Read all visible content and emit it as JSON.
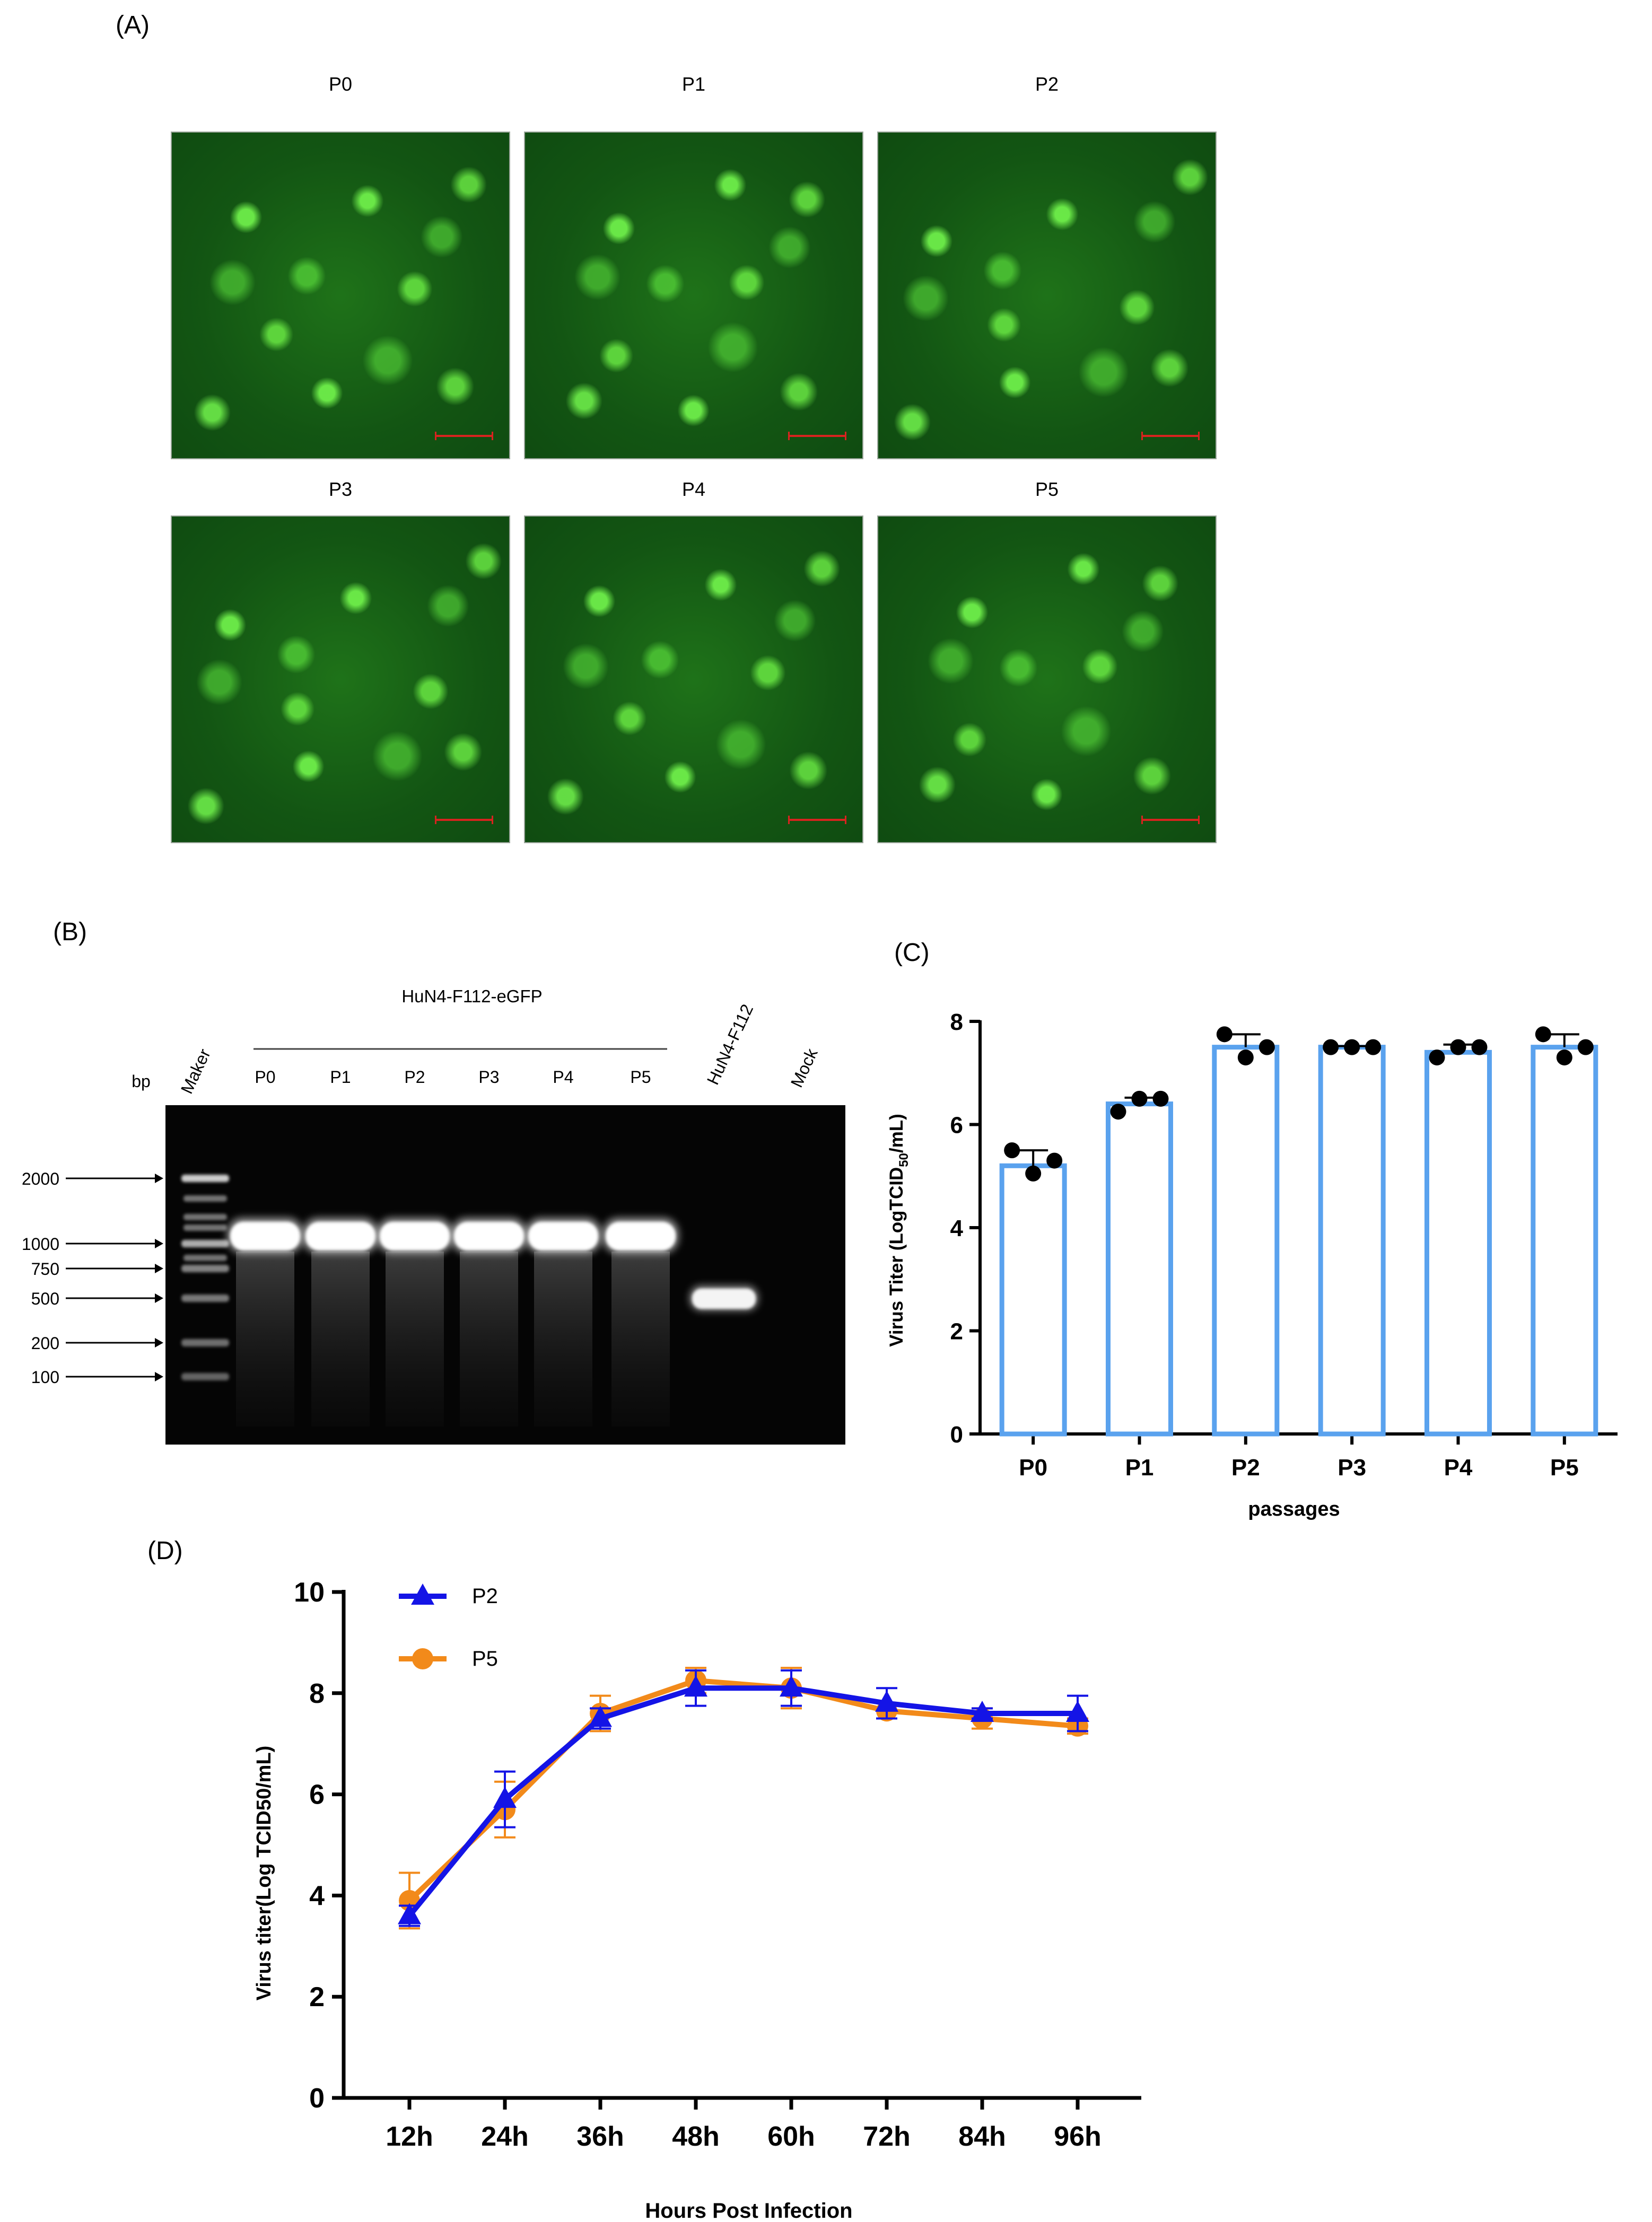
{
  "panel_a": {
    "letter": "(A)",
    "tiles": [
      {
        "label": "P0"
      },
      {
        "label": "P1"
      },
      {
        "label": "P2"
      },
      {
        "label": "P3"
      },
      {
        "label": "P4"
      },
      {
        "label": "P5"
      }
    ],
    "fluorescence_color": "#3fd637"
  },
  "panel_b": {
    "letter": "(B)",
    "group_label": "HuN4-F112-eGFP",
    "bp_label": "bp",
    "marker_label": "Maker",
    "lanes": [
      "P0",
      "P1",
      "P2",
      "P3",
      "P4",
      "P5"
    ],
    "control_lanes": [
      "HuN4-F112",
      "Mock"
    ],
    "ladder": [
      "2000",
      "1000",
      "750",
      "500",
      "200",
      "100"
    ]
  },
  "chart_data": [
    {
      "panel": "(C)",
      "type": "bar",
      "categories": [
        "P0",
        "P1",
        "P2",
        "P3",
        "P4",
        "P5"
      ],
      "values": [
        5.2,
        6.4,
        7.5,
        7.5,
        7.4,
        7.5
      ],
      "error": [
        0.3,
        0.12,
        0.25,
        0.02,
        0.15,
        0.25
      ],
      "points": [
        [
          5.5,
          5.05,
          5.3
        ],
        [
          6.25,
          6.5,
          6.5
        ],
        [
          7.75,
          7.3,
          7.5
        ],
        [
          7.5,
          7.5,
          7.5
        ],
        [
          7.3,
          7.5,
          7.5
        ],
        [
          7.75,
          7.3,
          7.5
        ]
      ],
      "xlabel": "passages",
      "ylabel": "Virus Titer (LogTCID",
      "ylabel_sub": "50",
      "ylabel_end": "/mL)",
      "ylim": [
        0,
        8
      ],
      "yticks": [
        "0",
        "2",
        "4",
        "6",
        "8"
      ],
      "bar_color": "#5aa2ee",
      "point_color": "#000000"
    },
    {
      "panel": "(D)",
      "type": "line",
      "x": [
        "12h",
        "24h",
        "36h",
        "48h",
        "60h",
        "72h",
        "84h",
        "96h"
      ],
      "series": [
        {
          "name": "P2",
          "values": [
            3.6,
            5.9,
            7.5,
            8.1,
            8.1,
            7.8,
            7.6,
            7.6
          ],
          "error": [
            0.2,
            0.55,
            0.2,
            0.35,
            0.35,
            0.3,
            0.1,
            0.35
          ],
          "color": "#1414e6",
          "marker": "triangle"
        },
        {
          "name": "P5",
          "values": [
            3.9,
            5.7,
            7.6,
            8.25,
            8.1,
            7.65,
            7.5,
            7.35
          ],
          "error": [
            0.55,
            0.55,
            0.35,
            0.25,
            0.4,
            0.15,
            0.2,
            0.15
          ],
          "color": "#f28a1a",
          "marker": "circle"
        }
      ],
      "xlabel": "Hours Post Infection",
      "ylabel": "Virus titer(Log TCID50/mL)",
      "ylim": [
        0,
        10
      ],
      "yticks": [
        "0",
        "2",
        "4",
        "6",
        "8",
        "10"
      ],
      "legend": "top-left"
    }
  ]
}
